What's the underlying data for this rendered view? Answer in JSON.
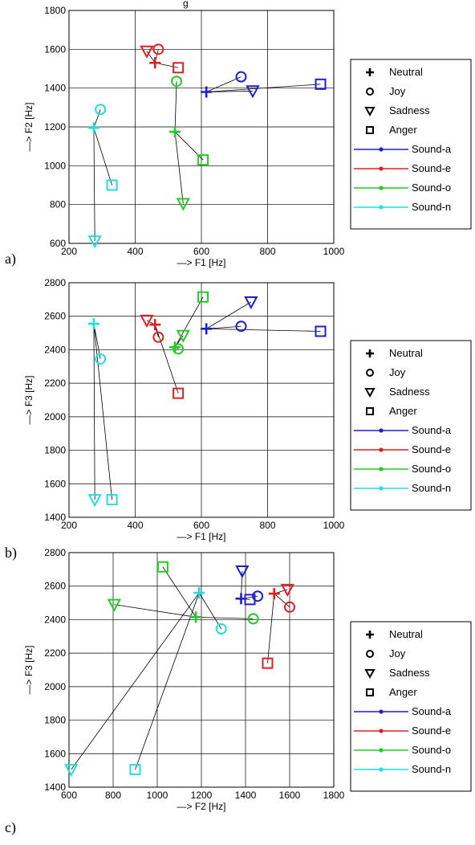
{
  "title_fragment": "g",
  "legend": {
    "markers": [
      {
        "symbol": "plus",
        "label": "Neutral"
      },
      {
        "symbol": "circle",
        "label": "Joy"
      },
      {
        "symbol": "triangle",
        "label": "Sadness"
      },
      {
        "symbol": "square",
        "label": "Anger"
      }
    ],
    "sounds": [
      {
        "label": "Sound-a",
        "color": "#1f1fcf"
      },
      {
        "label": "Sound-e",
        "color": "#e02020"
      },
      {
        "label": "Sound-o",
        "color": "#22cc22"
      },
      {
        "label": "Sound-n",
        "color": "#22dddd"
      }
    ]
  },
  "chart_data": [
    {
      "type": "scatter",
      "panel_label": "a)",
      "xlabel": "—> F1 [Hz]",
      "ylabel": "—> F2 [Hz]",
      "xlim": [
        200,
        1000
      ],
      "ylim": [
        600,
        1800
      ],
      "xticks": [
        200,
        400,
        600,
        800,
        1000
      ],
      "yticks": [
        600,
        800,
        1000,
        1200,
        1400,
        1600,
        1800
      ],
      "grid": true,
      "legend_placement": "right",
      "series": [
        {
          "name": "Sound-a",
          "points": {
            "Neutral": [
              615,
              1380
            ],
            "Joy": [
              720,
              1458
            ],
            "Sadness": [
              755,
              1385
            ],
            "Anger": [
              960,
              1420
            ]
          }
        },
        {
          "name": "Sound-e",
          "points": {
            "Neutral": [
              460,
              1530
            ],
            "Joy": [
              470,
              1600
            ],
            "Sadness": [
              435,
              1590
            ],
            "Anger": [
              530,
              1505
            ]
          }
        },
        {
          "name": "Sound-o",
          "points": {
            "Neutral": [
              520,
              1175
            ],
            "Joy": [
              525,
              1435
            ],
            "Sadness": [
              545,
              805
            ],
            "Anger": [
              605,
              1030
            ]
          }
        },
        {
          "name": "Sound-n",
          "points": {
            "Neutral": [
              275,
              1195
            ],
            "Joy": [
              295,
              1290
            ],
            "Sadness": [
              278,
              612
            ],
            "Anger": [
              330,
              900
            ]
          }
        }
      ]
    },
    {
      "type": "scatter",
      "panel_label": "b)",
      "xlabel": "—> F1 [Hz]",
      "ylabel": "—> F3 [Hz]",
      "xlim": [
        200,
        1000
      ],
      "ylim": [
        1400,
        2800
      ],
      "xticks": [
        200,
        400,
        600,
        800,
        1000
      ],
      "yticks": [
        1400,
        1600,
        1800,
        2000,
        2200,
        2400,
        2600,
        2800
      ],
      "grid": true,
      "legend_placement": "right",
      "series": [
        {
          "name": "Sound-a",
          "points": {
            "Neutral": [
              615,
              2525
            ],
            "Joy": [
              720,
              2540
            ],
            "Sadness": [
              750,
              2685
            ],
            "Anger": [
              960,
              2510
            ]
          }
        },
        {
          "name": "Sound-e",
          "points": {
            "Neutral": [
              460,
              2550
            ],
            "Joy": [
              470,
              2475
            ],
            "Sadness": [
              435,
              2575
            ],
            "Anger": [
              530,
              2140
            ]
          }
        },
        {
          "name": "Sound-o",
          "points": {
            "Neutral": [
              520,
              2415
            ],
            "Joy": [
              530,
              2405
            ],
            "Sadness": [
              545,
              2485
            ],
            "Anger": [
              605,
              2715
            ]
          }
        },
        {
          "name": "Sound-n",
          "points": {
            "Neutral": [
              275,
              2555
            ],
            "Joy": [
              295,
              2345
            ],
            "Sadness": [
              278,
              1505
            ],
            "Anger": [
              330,
              1505
            ]
          }
        }
      ]
    },
    {
      "type": "scatter",
      "panel_label": "c)",
      "xlabel": "—> F2 [Hz]",
      "ylabel": "—> F3 [Hz]",
      "xlim": [
        600,
        1800
      ],
      "ylim": [
        1400,
        2800
      ],
      "xticks": [
        600,
        800,
        1000,
        1200,
        1400,
        1600,
        1800
      ],
      "yticks": [
        1400,
        1600,
        1800,
        2000,
        2200,
        2400,
        2600,
        2800
      ],
      "grid": true,
      "legend_placement": "right",
      "series": [
        {
          "name": "Sound-a",
          "points": {
            "Neutral": [
              1380,
              2525
            ],
            "Joy": [
              1455,
              2540
            ],
            "Sadness": [
              1385,
              2690
            ],
            "Anger": [
              1420,
              2520
            ]
          }
        },
        {
          "name": "Sound-e",
          "points": {
            "Neutral": [
              1530,
              2555
            ],
            "Joy": [
              1600,
              2475
            ],
            "Sadness": [
              1590,
              2580
            ],
            "Anger": [
              1500,
              2140
            ]
          }
        },
        {
          "name": "Sound-o",
          "points": {
            "Neutral": [
              1175,
              2415
            ],
            "Joy": [
              1435,
              2405
            ],
            "Sadness": [
              805,
              2490
            ],
            "Anger": [
              1025,
              2715
            ]
          }
        },
        {
          "name": "Sound-n",
          "points": {
            "Neutral": [
              1190,
              2560
            ],
            "Joy": [
              1290,
              2345
            ],
            "Sadness": [
              610,
              1505
            ],
            "Anger": [
              900,
              1505
            ]
          }
        }
      ]
    }
  ]
}
